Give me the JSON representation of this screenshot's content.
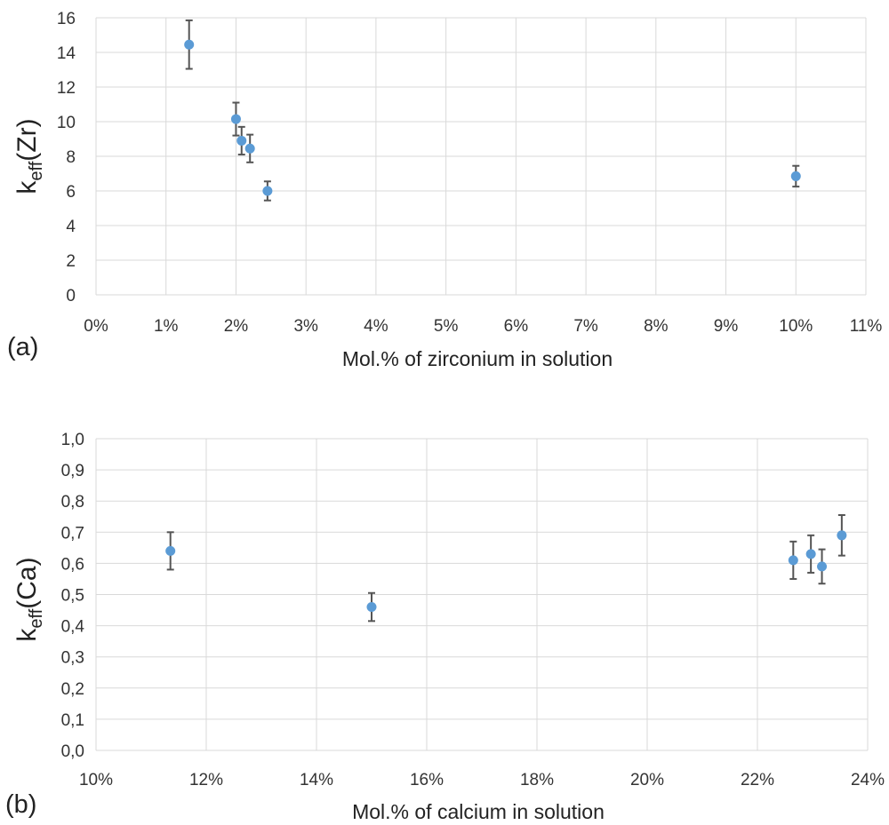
{
  "colors": {
    "marker": "#5b9bd5",
    "error_bar": "#555555",
    "grid": "#d9d9d9"
  },
  "chart_data": [
    {
      "type": "scatter",
      "panel_label": "(a)",
      "xlabel": "Mol.% of zirconium in solution",
      "ylabel_main": "k",
      "ylabel_sub": "eff",
      "ylabel_tail": "(Zr)",
      "xlim": [
        0,
        11
      ],
      "ylim": [
        0,
        16
      ],
      "x_ticks": [
        "0%",
        "1%",
        "2%",
        "3%",
        "4%",
        "5%",
        "6%",
        "7%",
        "8%",
        "9%",
        "10%",
        "11%"
      ],
      "y_ticks": [
        "0",
        "2",
        "4",
        "6",
        "8",
        "10",
        "12",
        "14",
        "16"
      ],
      "grid": true,
      "points": [
        {
          "x": 1.33,
          "y": 14.45,
          "err": 1.4
        },
        {
          "x": 2.0,
          "y": 10.15,
          "err": 0.95
        },
        {
          "x": 2.08,
          "y": 8.9,
          "err": 0.8
        },
        {
          "x": 2.2,
          "y": 8.45,
          "err": 0.8
        },
        {
          "x": 2.45,
          "y": 6.0,
          "err": 0.55
        },
        {
          "x": 10.0,
          "y": 6.85,
          "err": 0.6
        }
      ]
    },
    {
      "type": "scatter",
      "panel_label": "(b)",
      "xlabel": "Mol.% of calcium in solution",
      "ylabel_main": "k",
      "ylabel_sub": "eff",
      "ylabel_tail": "(Ca)",
      "xlim": [
        10,
        24
      ],
      "ylim": [
        0,
        1
      ],
      "x_ticks": [
        "10%",
        "12%",
        "14%",
        "16%",
        "18%",
        "20%",
        "22%",
        "24%"
      ],
      "y_ticks": [
        "0,0",
        "0,1",
        "0,2",
        "0,3",
        "0,4",
        "0,5",
        "0,6",
        "0,7",
        "0,8",
        "0,9",
        "1,0"
      ],
      "grid": true,
      "points": [
        {
          "x": 11.35,
          "y": 0.64,
          "err": 0.06
        },
        {
          "x": 15.0,
          "y": 0.46,
          "err": 0.045
        },
        {
          "x": 22.65,
          "y": 0.61,
          "err": 0.06
        },
        {
          "x": 22.97,
          "y": 0.63,
          "err": 0.06
        },
        {
          "x": 23.17,
          "y": 0.59,
          "err": 0.055
        },
        {
          "x": 23.53,
          "y": 0.69,
          "err": 0.065
        }
      ]
    }
  ]
}
